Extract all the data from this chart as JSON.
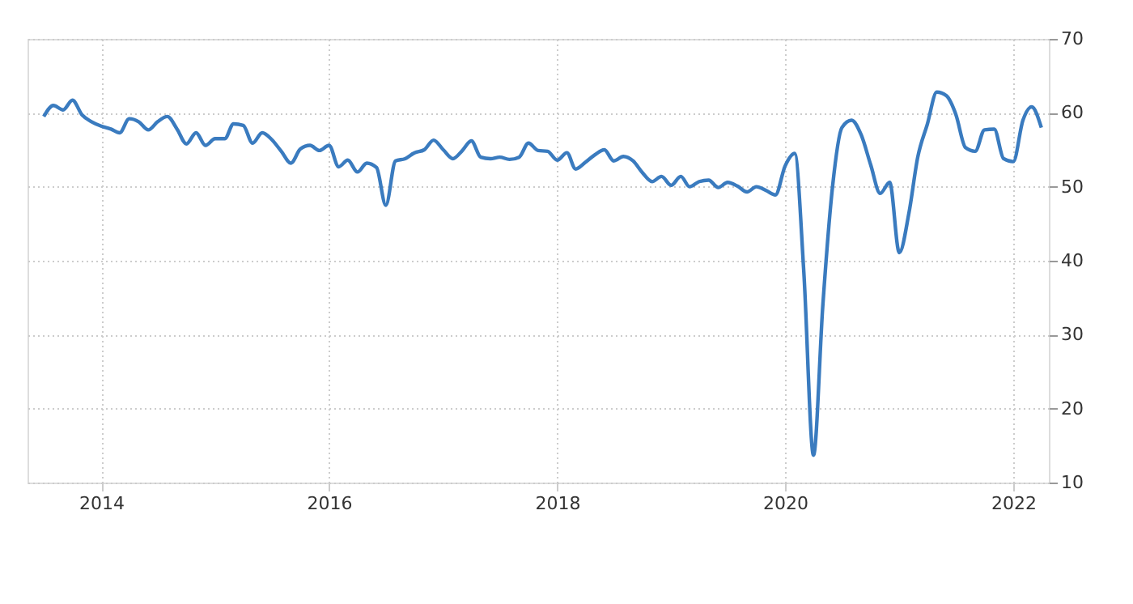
{
  "chart_data": {
    "type": "line",
    "x": [
      "2013-07",
      "2013-08",
      "2013-09",
      "2013-10",
      "2013-11",
      "2013-12",
      "2014-01",
      "2014-02",
      "2014-03",
      "2014-04",
      "2014-05",
      "2014-06",
      "2014-07",
      "2014-08",
      "2014-09",
      "2014-10",
      "2014-11",
      "2014-12",
      "2015-01",
      "2015-02",
      "2015-03",
      "2015-04",
      "2015-05",
      "2015-06",
      "2015-07",
      "2015-08",
      "2015-09",
      "2015-10",
      "2015-11",
      "2015-12",
      "2016-01",
      "2016-02",
      "2016-03",
      "2016-04",
      "2016-05",
      "2016-06",
      "2016-07",
      "2016-08",
      "2016-09",
      "2016-10",
      "2016-11",
      "2016-12",
      "2017-01",
      "2017-02",
      "2017-03",
      "2017-04",
      "2017-05",
      "2017-06",
      "2017-07",
      "2017-08",
      "2017-09",
      "2017-10",
      "2017-11",
      "2017-12",
      "2018-01",
      "2018-02",
      "2018-03",
      "2018-04",
      "2018-05",
      "2018-06",
      "2018-07",
      "2018-08",
      "2018-09",
      "2018-10",
      "2018-11",
      "2018-12",
      "2019-01",
      "2019-02",
      "2019-03",
      "2019-04",
      "2019-05",
      "2019-06",
      "2019-07",
      "2019-08",
      "2019-09",
      "2019-10",
      "2019-11",
      "2019-12",
      "2020-01",
      "2020-02",
      "2020-03",
      "2020-04",
      "2020-05",
      "2020-06",
      "2020-07",
      "2020-08",
      "2020-09",
      "2020-10",
      "2020-11",
      "2020-12",
      "2021-01",
      "2021-02",
      "2021-03",
      "2021-04",
      "2021-05",
      "2021-06",
      "2021-07",
      "2021-08",
      "2021-09",
      "2021-10",
      "2021-11",
      "2021-12",
      "2022-01",
      "2022-02",
      "2022-03",
      "2022-04"
    ],
    "series": [
      {
        "color": "#3a7bbf",
        "values": [
          59.5,
          61.0,
          60.4,
          61.7,
          59.7,
          58.8,
          58.2,
          57.8,
          57.3,
          59.2,
          58.8,
          57.7,
          58.8,
          59.5,
          57.8,
          55.8,
          57.3,
          55.6,
          56.5,
          56.5,
          58.5,
          58.3,
          55.9,
          57.3,
          56.4,
          54.8,
          53.2,
          55.1,
          55.6,
          54.9,
          55.6,
          52.7,
          53.6,
          52.0,
          53.2,
          52.6,
          47.5,
          53.5,
          53.8,
          54.6,
          55.0,
          56.3,
          55.0,
          53.8,
          54.8,
          56.2,
          54.0,
          53.8,
          54.0,
          53.7,
          54.0,
          55.9,
          54.9,
          54.8,
          53.6,
          54.6,
          52.4,
          53.3,
          54.3,
          55.0,
          53.5,
          54.1,
          53.5,
          51.9,
          50.7,
          51.4,
          50.2,
          51.4,
          50.0,
          50.7,
          50.9,
          49.9,
          50.6,
          50.1,
          49.3,
          50.0,
          49.5,
          48.9,
          52.8,
          54.5,
          38.5,
          13.7,
          34.0,
          50.0,
          58.0,
          59.0,
          57.0,
          53.0,
          49.1,
          50.6,
          41.1,
          46.5,
          54.0,
          58.5,
          62.8,
          62.3,
          59.8,
          55.3,
          54.8,
          57.7,
          57.8,
          53.8,
          53.4,
          59.0,
          60.8,
          58.0
        ]
      }
    ],
    "xlim": [
      "2013-05-10",
      "2022-04-25"
    ],
    "xticks": [
      {
        "value": "2014",
        "label": "2014"
      },
      {
        "value": "2016",
        "label": "2016"
      },
      {
        "value": "2018",
        "label": "2018"
      },
      {
        "value": "2020",
        "label": "2020"
      },
      {
        "value": "2022",
        "label": "2022"
      }
    ],
    "ylim": [
      10,
      70
    ],
    "yticks": [
      10,
      20,
      30,
      40,
      50,
      60,
      70
    ],
    "grid": true,
    "line_style": "solid",
    "marker": "none"
  }
}
